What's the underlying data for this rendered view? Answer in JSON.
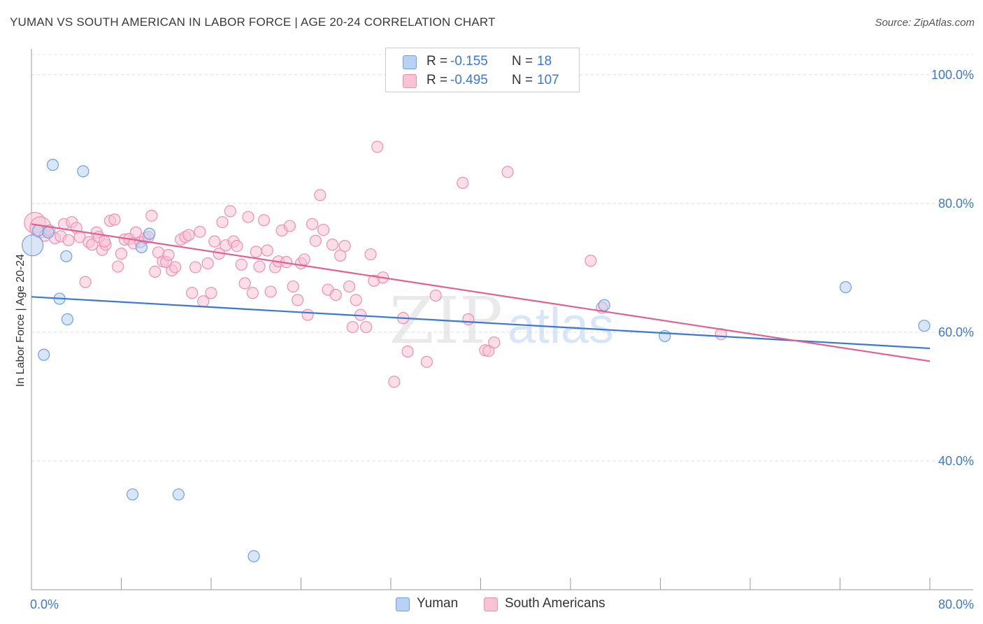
{
  "title": "YUMAN VS SOUTH AMERICAN IN LABOR FORCE | AGE 20-24 CORRELATION CHART",
  "source": "Source: ZipAtlas.com",
  "watermark": {
    "zip": "ZIP",
    "atlas": "atlas"
  },
  "legend": [
    {
      "r_label": "R =",
      "r_value": "-0.155",
      "n_label": "N =",
      "n_value": "18"
    },
    {
      "r_label": "R =",
      "r_value": "-0.495",
      "n_label": "N =",
      "n_value": "107"
    }
  ],
  "chart_data": {
    "type": "scatter",
    "title": "YUMAN VS SOUTH AMERICAN IN LABOR FORCE | AGE 20-24 CORRELATION CHART",
    "xlabel": "",
    "ylabel": "In Labor Force | Age 20-24",
    "xlim": [
      0,
      80
    ],
    "ylim": [
      20,
      104
    ],
    "x_ticks": [
      {
        "value": 0,
        "label": "0.0%"
      },
      {
        "value": 80,
        "label": "80.0%"
      }
    ],
    "y_ticks": [
      {
        "value": 40,
        "label": "40.0%"
      },
      {
        "value": 60,
        "label": "60.0%"
      },
      {
        "value": 80,
        "label": "80.0%"
      },
      {
        "value": 100,
        "label": "100.0%"
      }
    ],
    "grid": "horizontal dashed",
    "legend_position": "top-center",
    "series": [
      {
        "name": "Yuman",
        "color": "#6f9fe0",
        "fill": "#b9d2f3",
        "trend": {
          "x": [
            0,
            80
          ],
          "y": [
            65.5,
            57.5
          ],
          "color": "#3a78d4"
        },
        "points": [
          {
            "x": 0.1,
            "y": 73.5,
            "big": true
          },
          {
            "x": 0.6,
            "y": 75.8
          },
          {
            "x": 1.9,
            "y": 86.0
          },
          {
            "x": 4.6,
            "y": 85.0
          },
          {
            "x": 3.1,
            "y": 71.8
          },
          {
            "x": 2.5,
            "y": 65.2
          },
          {
            "x": 3.2,
            "y": 62.0
          },
          {
            "x": 1.1,
            "y": 56.5
          },
          {
            "x": 10.5,
            "y": 75.3
          },
          {
            "x": 9.8,
            "y": 73.2
          },
          {
            "x": 9.0,
            "y": 34.8
          },
          {
            "x": 13.1,
            "y": 34.8
          },
          {
            "x": 19.8,
            "y": 25.2
          },
          {
            "x": 51.0,
            "y": 64.2
          },
          {
            "x": 56.4,
            "y": 59.4
          },
          {
            "x": 72.5,
            "y": 67.0
          },
          {
            "x": 79.5,
            "y": 61.0
          },
          {
            "x": 1.5,
            "y": 75.5
          }
        ]
      },
      {
        "name": "South Americans",
        "color": "#ee8fb0",
        "fill": "#f7c3d5",
        "trend": {
          "x": [
            0,
            80
          ],
          "y": [
            76.8,
            55.5
          ],
          "color": "#e0608f"
        },
        "points": [
          {
            "x": 0.3,
            "y": 77.0,
            "big": true
          },
          {
            "x": 0.8,
            "y": 76.3,
            "big": true
          },
          {
            "x": 1.2,
            "y": 75.0
          },
          {
            "x": 1.6,
            "y": 75.8
          },
          {
            "x": 2.1,
            "y": 74.6
          },
          {
            "x": 2.6,
            "y": 74.9
          },
          {
            "x": 2.9,
            "y": 76.8
          },
          {
            "x": 3.3,
            "y": 74.3
          },
          {
            "x": 3.6,
            "y": 77.1
          },
          {
            "x": 4.0,
            "y": 76.2
          },
          {
            "x": 4.3,
            "y": 74.8
          },
          {
            "x": 4.8,
            "y": 67.8
          },
          {
            "x": 5.1,
            "y": 74.0
          },
          {
            "x": 5.4,
            "y": 73.6
          },
          {
            "x": 5.8,
            "y": 75.5
          },
          {
            "x": 6.0,
            "y": 74.8
          },
          {
            "x": 6.3,
            "y": 72.8
          },
          {
            "x": 6.6,
            "y": 73.6
          },
          {
            "x": 7.0,
            "y": 77.3
          },
          {
            "x": 7.4,
            "y": 77.5
          },
          {
            "x": 7.7,
            "y": 70.2
          },
          {
            "x": 8.0,
            "y": 72.2
          },
          {
            "x": 8.3,
            "y": 74.4
          },
          {
            "x": 8.7,
            "y": 74.5
          },
          {
            "x": 9.1,
            "y": 73.8
          },
          {
            "x": 9.3,
            "y": 75.5
          },
          {
            "x": 9.7,
            "y": 74.0
          },
          {
            "x": 10.1,
            "y": 74.6
          },
          {
            "x": 10.4,
            "y": 74.8
          },
          {
            "x": 10.7,
            "y": 78.1
          },
          {
            "x": 11.0,
            "y": 69.4
          },
          {
            "x": 11.3,
            "y": 72.4
          },
          {
            "x": 11.7,
            "y": 71.0
          },
          {
            "x": 12.0,
            "y": 70.9
          },
          {
            "x": 12.2,
            "y": 72.0
          },
          {
            "x": 12.5,
            "y": 69.6
          },
          {
            "x": 12.8,
            "y": 70.1
          },
          {
            "x": 13.3,
            "y": 74.4
          },
          {
            "x": 13.7,
            "y": 74.8
          },
          {
            "x": 14.0,
            "y": 75.1
          },
          {
            "x": 14.3,
            "y": 66.1
          },
          {
            "x": 14.6,
            "y": 70.1
          },
          {
            "x": 15.0,
            "y": 75.6
          },
          {
            "x": 15.3,
            "y": 64.8
          },
          {
            "x": 15.7,
            "y": 70.7
          },
          {
            "x": 16.0,
            "y": 66.1
          },
          {
            "x": 16.3,
            "y": 74.1
          },
          {
            "x": 16.7,
            "y": 72.2
          },
          {
            "x": 17.0,
            "y": 77.1
          },
          {
            "x": 17.3,
            "y": 73.5
          },
          {
            "x": 17.7,
            "y": 78.8
          },
          {
            "x": 18.0,
            "y": 74.1
          },
          {
            "x": 18.3,
            "y": 73.4
          },
          {
            "x": 18.7,
            "y": 70.5
          },
          {
            "x": 19.0,
            "y": 67.6
          },
          {
            "x": 19.3,
            "y": 77.9
          },
          {
            "x": 19.7,
            "y": 66.1
          },
          {
            "x": 20.0,
            "y": 72.5
          },
          {
            "x": 20.3,
            "y": 70.2
          },
          {
            "x": 20.7,
            "y": 77.4
          },
          {
            "x": 21.0,
            "y": 72.7
          },
          {
            "x": 21.3,
            "y": 66.3
          },
          {
            "x": 21.7,
            "y": 70.1
          },
          {
            "x": 22.0,
            "y": 71.0
          },
          {
            "x": 22.3,
            "y": 75.8
          },
          {
            "x": 22.7,
            "y": 70.9
          },
          {
            "x": 23.0,
            "y": 76.5
          },
          {
            "x": 23.3,
            "y": 67.1
          },
          {
            "x": 23.7,
            "y": 65.0
          },
          {
            "x": 24.0,
            "y": 70.7
          },
          {
            "x": 24.3,
            "y": 71.3
          },
          {
            "x": 24.6,
            "y": 62.7
          },
          {
            "x": 25.0,
            "y": 76.8
          },
          {
            "x": 25.3,
            "y": 74.2
          },
          {
            "x": 25.7,
            "y": 81.3
          },
          {
            "x": 26.0,
            "y": 75.9
          },
          {
            "x": 26.4,
            "y": 66.6
          },
          {
            "x": 26.8,
            "y": 73.6
          },
          {
            "x": 27.1,
            "y": 65.8
          },
          {
            "x": 27.5,
            "y": 71.9
          },
          {
            "x": 27.9,
            "y": 73.4
          },
          {
            "x": 28.3,
            "y": 67.1
          },
          {
            "x": 28.6,
            "y": 60.8
          },
          {
            "x": 28.9,
            "y": 65.0
          },
          {
            "x": 29.3,
            "y": 62.7
          },
          {
            "x": 29.8,
            "y": 60.8
          },
          {
            "x": 30.2,
            "y": 72.1
          },
          {
            "x": 30.5,
            "y": 68.0
          },
          {
            "x": 30.8,
            "y": 88.8
          },
          {
            "x": 31.3,
            "y": 68.5
          },
          {
            "x": 32.3,
            "y": 52.3
          },
          {
            "x": 33.1,
            "y": 62.2
          },
          {
            "x": 33.5,
            "y": 57.0
          },
          {
            "x": 35.2,
            "y": 55.4
          },
          {
            "x": 36.0,
            "y": 65.7
          },
          {
            "x": 38.4,
            "y": 83.2
          },
          {
            "x": 38.9,
            "y": 62.0
          },
          {
            "x": 40.4,
            "y": 57.2
          },
          {
            "x": 40.7,
            "y": 57.1
          },
          {
            "x": 41.2,
            "y": 58.4
          },
          {
            "x": 42.4,
            "y": 84.9
          },
          {
            "x": 49.8,
            "y": 71.1
          },
          {
            "x": 50.8,
            "y": 63.8
          },
          {
            "x": 61.4,
            "y": 59.7
          },
          {
            "x": 6.5,
            "y": 74.1
          }
        ]
      }
    ]
  }
}
